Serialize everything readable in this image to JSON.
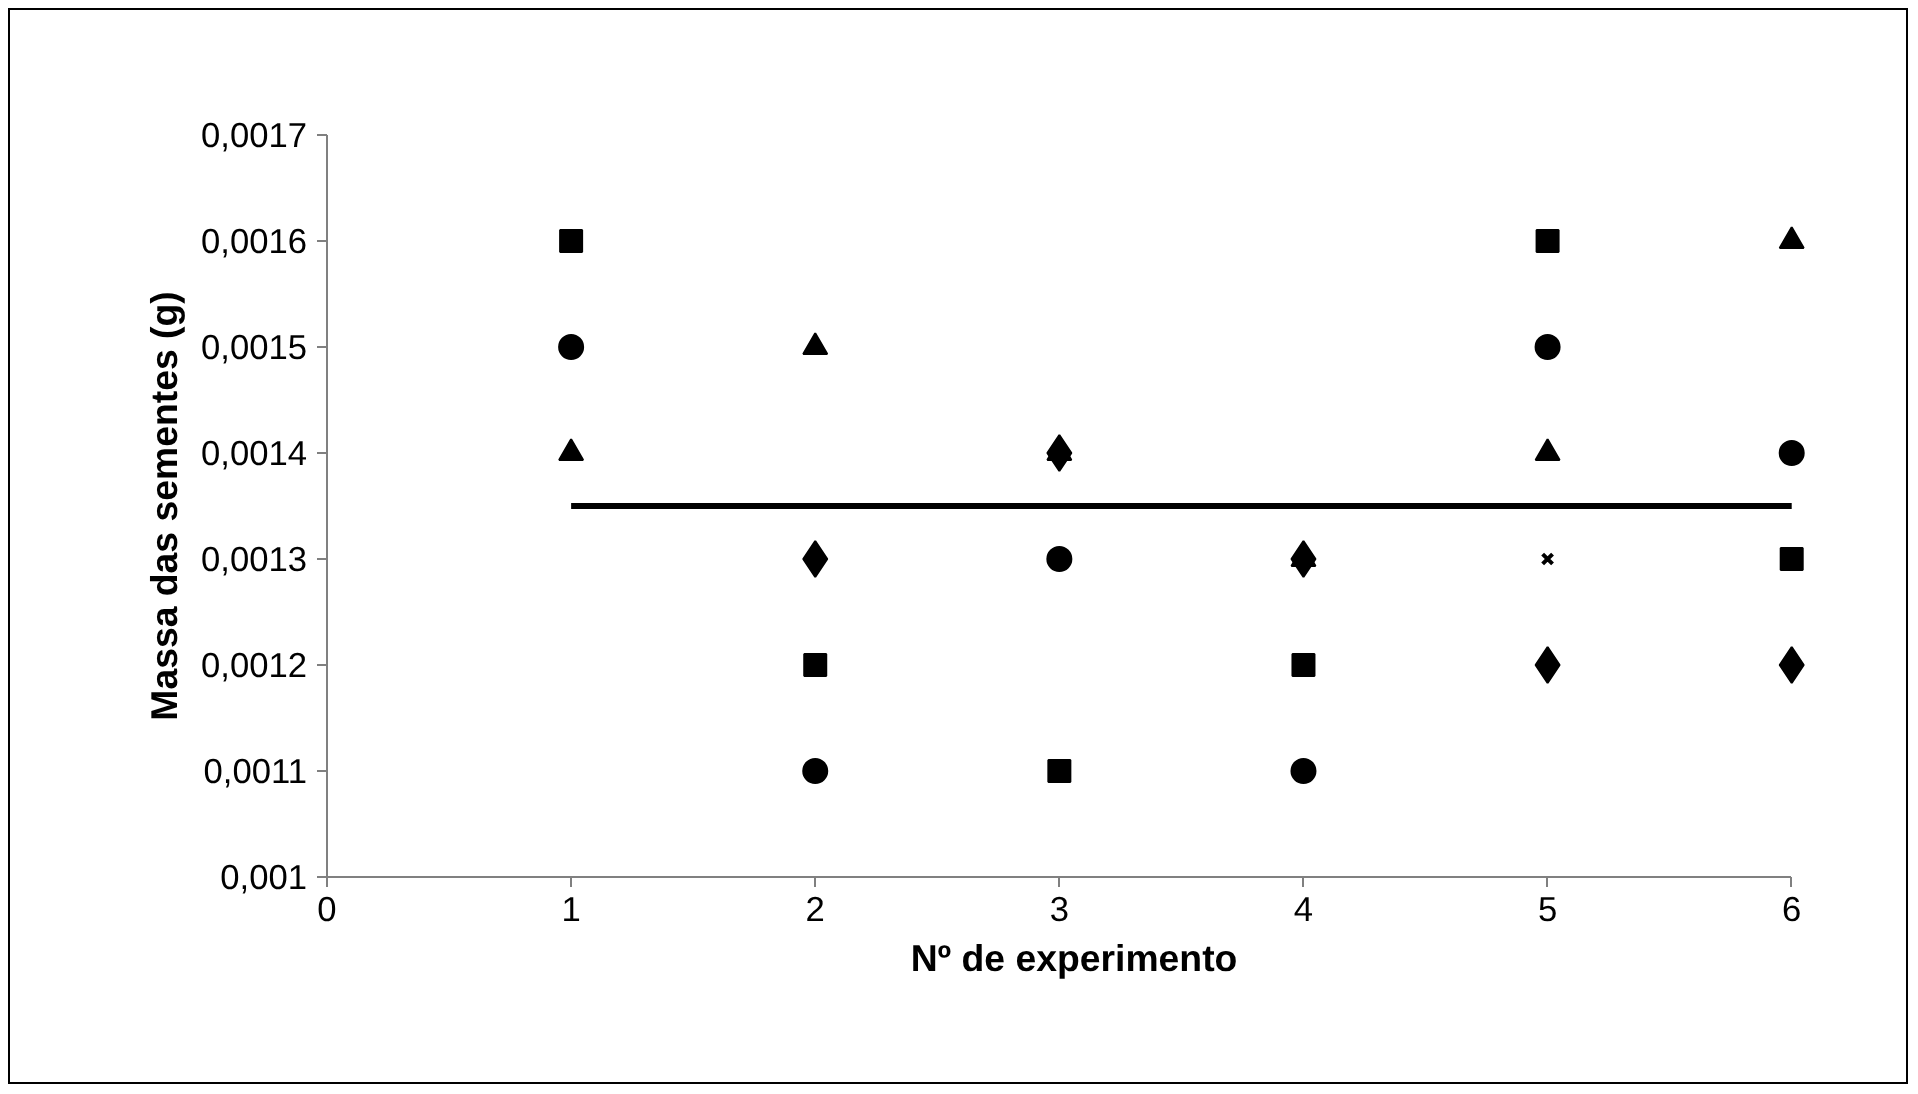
{
  "chart_data": {
    "type": "scatter",
    "xlabel": "Nº de experimento",
    "ylabel": "Massa das sementes (g)",
    "x": [
      1,
      2,
      3,
      4,
      5,
      6
    ],
    "xlim": [
      0,
      6
    ],
    "xticks": [
      0,
      1,
      2,
      3,
      4,
      5,
      6
    ],
    "ylim": [
      0.001,
      0.0017
    ],
    "yticks": [
      {
        "value": 0.001,
        "label": "0,001"
      },
      {
        "value": 0.0011,
        "label": "0,0011"
      },
      {
        "value": 0.0012,
        "label": "0,0012"
      },
      {
        "value": 0.0013,
        "label": "0,0013"
      },
      {
        "value": 0.0014,
        "label": "0,0014"
      },
      {
        "value": 0.0015,
        "label": "0,0015"
      },
      {
        "value": 0.0016,
        "label": "0,0016"
      },
      {
        "value": 0.0017,
        "label": "0,0017"
      }
    ],
    "grid": false,
    "series": [
      {
        "color": "#000000",
        "marker": "diamond",
        "values": [
          null,
          0.0013,
          0.0014,
          0.0013,
          0.0012,
          0.0012
        ]
      },
      {
        "color": "#000000",
        "marker": "square",
        "values": [
          0.0016,
          0.0012,
          0.0011,
          0.0012,
          0.0016,
          0.0013
        ]
      },
      {
        "color": "#000000",
        "marker": "triangle",
        "values": [
          0.0014,
          0.0015,
          0.0014,
          0.0013,
          0.0014,
          0.0016
        ]
      },
      {
        "color": "#000000",
        "marker": "cross",
        "values": [
          null,
          null,
          null,
          null,
          0.0013,
          null
        ]
      },
      {
        "color": "#000000",
        "marker": "circle",
        "values": [
          0.0015,
          0.0011,
          0.0013,
          0.0011,
          0.0015,
          0.0014
        ]
      },
      {
        "type": "line",
        "color": "#000000",
        "marker": "none",
        "line_style": "solid",
        "x": [
          1,
          6
        ],
        "values": [
          0.00135,
          0.00135
        ]
      }
    ]
  }
}
